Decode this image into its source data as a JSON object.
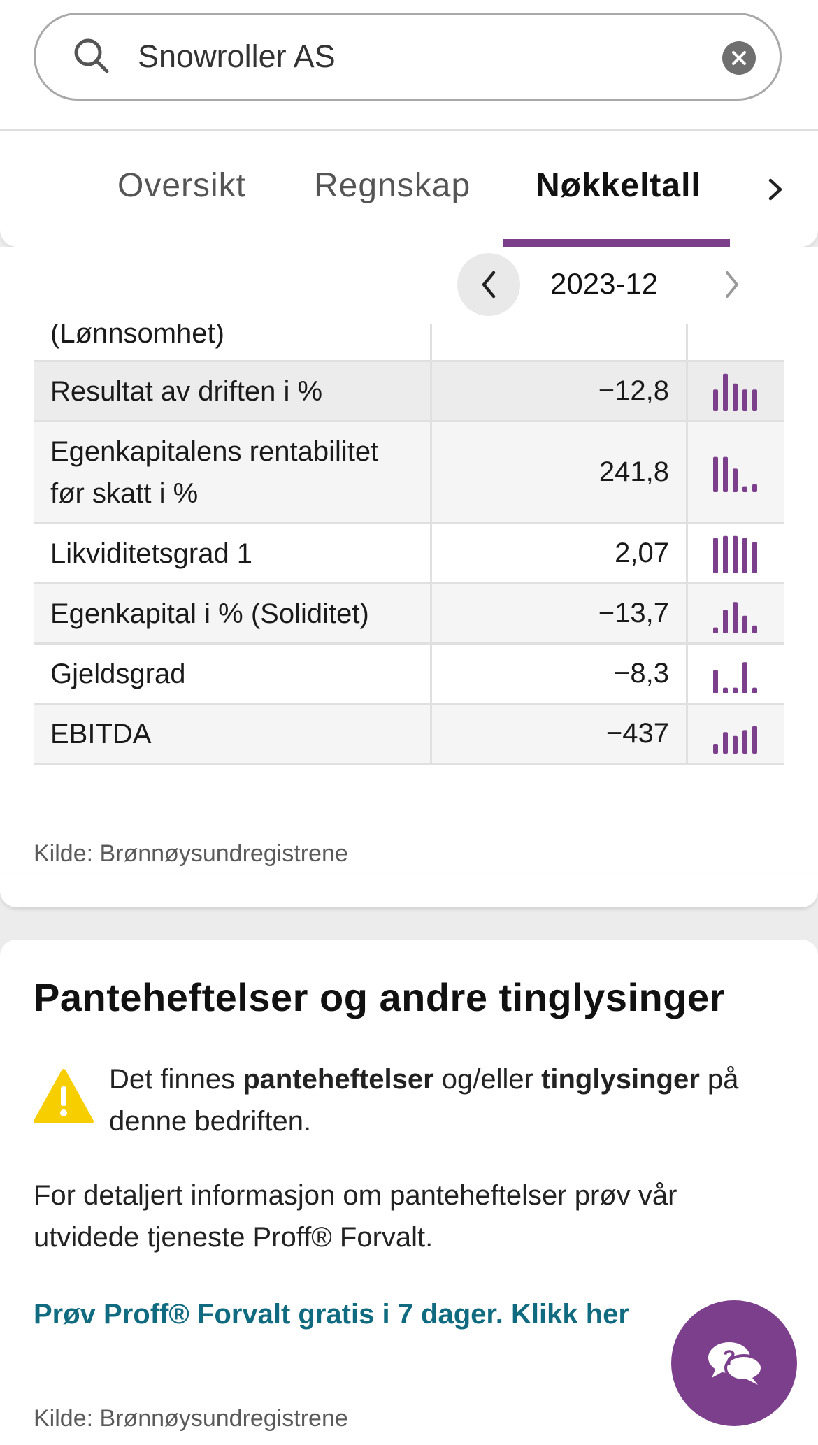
{
  "search": {
    "value": "Snowroller AS"
  },
  "tabs": [
    {
      "label": "Oversikt"
    },
    {
      "label": "Regnskap"
    },
    {
      "label": "Nøkkeltall"
    }
  ],
  "year_nav": {
    "label": "2023-12"
  },
  "table": {
    "partial_row": "(Lønnsomhet)",
    "rows": [
      {
        "name": "Resultat av driften i %",
        "value": "−12,8",
        "spark": [
          0.55,
          0.95,
          0.7,
          0.55,
          0.55
        ]
      },
      {
        "name": "Egenkapitalens rentabilitet før skatt i %",
        "value": "241,8",
        "spark": [
          0.9,
          0.9,
          0.6,
          0.15,
          0.2
        ]
      },
      {
        "name": "Likviditetsgrad 1",
        "value": "2,07",
        "spark": [
          0.9,
          0.95,
          0.95,
          0.9,
          0.8
        ]
      },
      {
        "name": "Egenkapital i % (Soliditet)",
        "value": "−13,7",
        "spark": [
          0.15,
          0.6,
          0.8,
          0.45,
          0.2
        ]
      },
      {
        "name": "Gjeldsgrad",
        "value": "−8,3",
        "spark": [
          0.6,
          0.15,
          0.15,
          0.8,
          0.15
        ]
      },
      {
        "name": "EBITDA",
        "value": "−437",
        "spark": [
          0.25,
          0.55,
          0.45,
          0.6,
          0.7
        ]
      }
    ]
  },
  "source_label": "Kilde: Brønnøysundregistrene",
  "pant": {
    "title": "Panteheftelser og andre tinglysinger",
    "warn_prefix": "Det finnes ",
    "warn_bold1": "panteheftelser",
    "warn_mid": " og/eller ",
    "warn_bold2": "tinglysinger",
    "warn_suffix": " på denne bedriften.",
    "info": "For detaljert informasjon om panteheftelser prøv vår utvidede tjeneste Proff® Forvalt.",
    "cta": "Prøv Proff® Forvalt gratis i 7 dager. Klikk her",
    "source": "Kilde: Brønnøysundregistrene"
  },
  "colors": {
    "accent": "#7b3f8c",
    "link": "#116b80",
    "warning": "#f7cf00"
  }
}
